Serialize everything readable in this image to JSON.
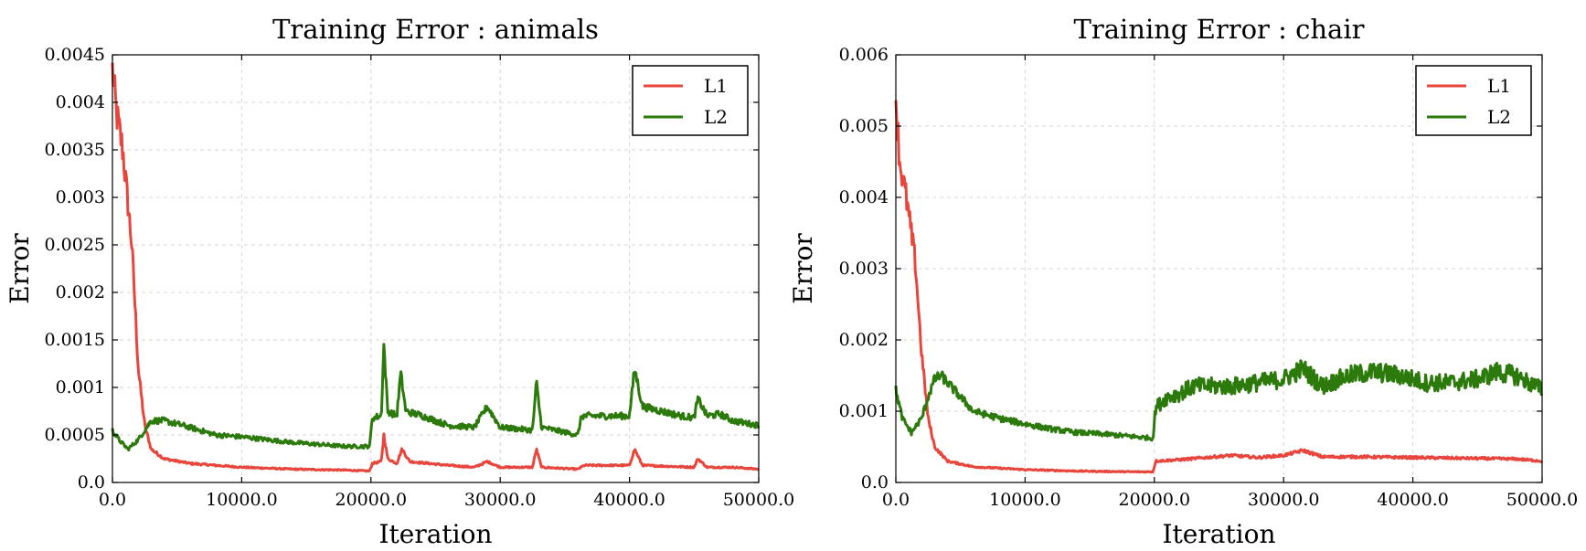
{
  "chart_data": [
    {
      "type": "line",
      "title": "Training Error : animals",
      "xlabel": "Iteration",
      "ylabel": "Error",
      "xlim": [
        0,
        50000
      ],
      "ylim": [
        0,
        0.0045
      ],
      "xticks": [
        "0.0",
        "10000.0",
        "20000.0",
        "30000.0",
        "40000.0",
        "50000.0"
      ],
      "yticks": [
        "0.0",
        "0.0005",
        "0.001",
        "0.0015",
        "0.002",
        "0.0025",
        "0.003",
        "0.0035",
        "0.004",
        "0.0045"
      ],
      "grid": true,
      "legend_position": "top-right",
      "series": [
        {
          "name": "L1",
          "color": "#e8453c",
          "x": [
            0,
            300,
            800,
            1500,
            2000,
            2500,
            3000,
            4000,
            6000,
            8000,
            10000,
            14000,
            18000,
            19900,
            20100,
            20800,
            21000,
            21300,
            22000,
            22400,
            23000,
            26000,
            28000,
            29000,
            30000,
            32500,
            32800,
            33200,
            36000,
            36500,
            40000,
            40400,
            41000,
            45000,
            45300,
            46000,
            48000,
            50000
          ],
          "y": [
            0.00435,
            0.0039,
            0.0035,
            0.0025,
            0.0012,
            0.0006,
            0.00035,
            0.00025,
            0.0002,
            0.00018,
            0.00016,
            0.00014,
            0.00013,
            0.00012,
            0.0002,
            0.00022,
            0.0005,
            0.00025,
            0.0002,
            0.00035,
            0.00022,
            0.00018,
            0.00016,
            0.00022,
            0.00016,
            0.00016,
            0.00035,
            0.00016,
            0.00014,
            0.00018,
            0.00018,
            0.00035,
            0.00018,
            0.00016,
            0.00025,
            0.00016,
            0.00016,
            0.00014
          ]
        },
        {
          "name": "L2",
          "color": "#2b7a0b",
          "x": [
            0,
            500,
            1200,
            2000,
            2500,
            3000,
            4000,
            6000,
            8000,
            10000,
            12000,
            14000,
            16000,
            18000,
            19900,
            20100,
            20800,
            21000,
            21300,
            22000,
            22300,
            22700,
            24000,
            26000,
            28000,
            29000,
            30000,
            32500,
            32800,
            33200,
            36000,
            36300,
            38000,
            40000,
            40400,
            41000,
            44000,
            45000,
            45300,
            46000,
            47000,
            48000,
            50000
          ],
          "y": [
            0.00055,
            0.00045,
            0.00035,
            0.00045,
            0.00055,
            0.00065,
            0.00065,
            0.00058,
            0.0005,
            0.00048,
            0.00045,
            0.00042,
            0.0004,
            0.00038,
            0.00038,
            0.00068,
            0.0007,
            0.00145,
            0.00075,
            0.0007,
            0.00115,
            0.00075,
            0.0007,
            0.0006,
            0.00058,
            0.0008,
            0.00058,
            0.00055,
            0.00105,
            0.00058,
            0.0005,
            0.0007,
            0.0007,
            0.0007,
            0.0012,
            0.0008,
            0.0007,
            0.00068,
            0.00088,
            0.0007,
            0.00072,
            0.00065,
            0.0006
          ]
        }
      ]
    },
    {
      "type": "line",
      "title": "Training Error : chair",
      "xlabel": "Iteration",
      "ylabel": "Error",
      "xlim": [
        0,
        50000
      ],
      "ylim": [
        0,
        0.006
      ],
      "xticks": [
        "0.0",
        "10000.0",
        "20000.0",
        "30000.0",
        "40000.0",
        "50000.0"
      ],
      "yticks": [
        "0.0",
        "0.001",
        "0.002",
        "0.003",
        "0.004",
        "0.005",
        "0.006"
      ],
      "grid": true,
      "legend_position": "top-right",
      "series": [
        {
          "name": "L1",
          "color": "#e8453c",
          "x": [
            0,
            300,
            800,
            1500,
            2000,
            2500,
            3000,
            4000,
            6000,
            8000,
            10000,
            14000,
            18000,
            19900,
            20100,
            22000,
            24000,
            26000,
            28000,
            30000,
            31500,
            33000,
            36000,
            40000,
            44000,
            48000,
            50000
          ],
          "y": [
            0.0054,
            0.0045,
            0.004,
            0.0031,
            0.0018,
            0.0009,
            0.0005,
            0.0003,
            0.00022,
            0.0002,
            0.00018,
            0.00016,
            0.00015,
            0.00015,
            0.0003,
            0.00032,
            0.00035,
            0.00038,
            0.00035,
            0.00038,
            0.00045,
            0.00036,
            0.00036,
            0.00035,
            0.00034,
            0.00033,
            0.0003
          ]
        },
        {
          "name": "L2",
          "color": "#2b7a0b",
          "x": [
            0,
            500,
            1200,
            2000,
            2500,
            3000,
            3500,
            4500,
            6000,
            8000,
            10000,
            12000,
            14000,
            16000,
            18000,
            19900,
            20100,
            21000,
            22000,
            23000,
            24000,
            26000,
            28000,
            30000,
            31500,
            33000,
            35000,
            37000,
            39000,
            41000,
            43000,
            45000,
            46500,
            48000,
            50000
          ],
          "y": [
            0.0013,
            0.0009,
            0.0007,
            0.0009,
            0.0012,
            0.00145,
            0.0015,
            0.0013,
            0.001,
            0.0009,
            0.00082,
            0.00075,
            0.0007,
            0.00068,
            0.00065,
            0.00062,
            0.00105,
            0.0012,
            0.00125,
            0.00135,
            0.00135,
            0.00135,
            0.0014,
            0.00145,
            0.0016,
            0.00135,
            0.0015,
            0.00155,
            0.0015,
            0.0014,
            0.0014,
            0.00145,
            0.00155,
            0.0015,
            0.0013
          ]
        }
      ]
    }
  ]
}
